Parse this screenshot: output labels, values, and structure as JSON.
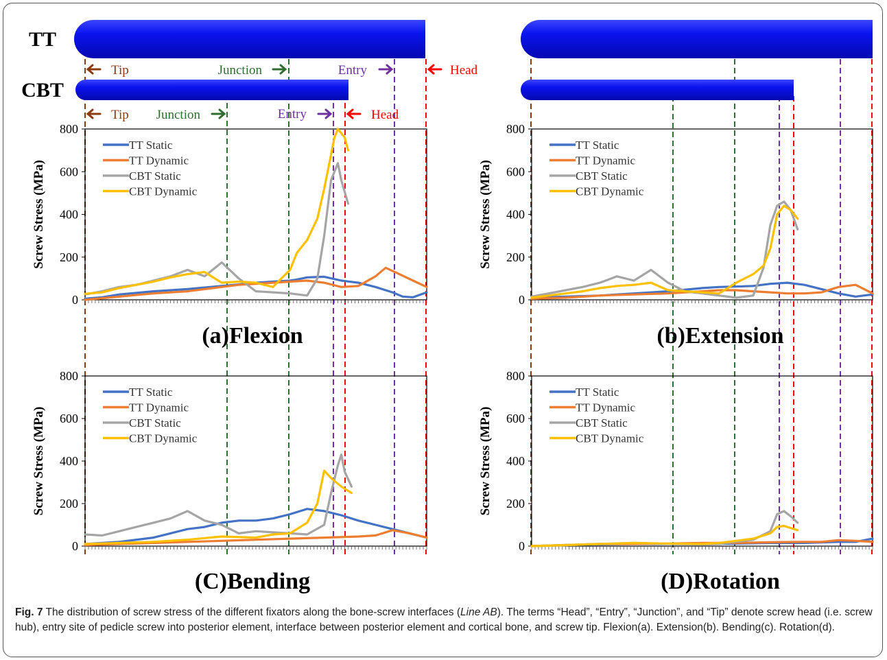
{
  "caption": {
    "label": "Fig. 7",
    "pre": " The distribution of screw stress of the different fixators along the bone-screw interfaces (",
    "italic": "Line AB",
    "post": "). The terms “Head”, “Entry”, “Junction”, and “Tip” denote screw head (i.e. screw hub), entry site of pedicle screw into posterior element, interface between posterior element and cortical bone, and screw tip. Flexion(a). Extension(b). Bending(c). Rotation(d)."
  },
  "screws": {
    "tt_label": "TT",
    "cbt_label": "CBT",
    "tt_markers": {
      "tip": "Tip",
      "junction": "Junction",
      "entry": "Entry",
      "head": "Head"
    },
    "cbt_markers": {
      "tip": "Tip",
      "junction": "Junction",
      "entry": "Entry",
      "head": "Head"
    }
  },
  "colors": {
    "screw": "#0a14ee",
    "tip": "#8b3a0e",
    "junction": "#2e6e2e",
    "entry": "#7030a0",
    "head": "#ff0000",
    "tt_static": "#4472c4",
    "tt_dynamic": "#ed7d31",
    "cbt_static": "#a5a5a5",
    "cbt_dynamic": "#ffc000"
  },
  "chart_data": [
    {
      "type": "line",
      "title": "(a)Flexion",
      "ylabel": "Screw Stress (MPa)",
      "ylim": [
        0,
        800
      ],
      "yticks": [
        "0",
        "200",
        "400",
        "600",
        "800"
      ],
      "x_range": [
        0,
        100
      ],
      "legend_position": "top-left",
      "series": [
        {
          "name": "TT Static",
          "color": "#4472c4",
          "x": [
            0,
            5,
            10,
            20,
            30,
            40,
            45,
            50,
            55,
            60,
            62,
            65,
            70,
            75,
            80,
            85,
            90,
            93,
            96,
            100
          ],
          "y": [
            5,
            12,
            25,
            40,
            50,
            65,
            72,
            80,
            85,
            90,
            95,
            105,
            108,
            90,
            80,
            60,
            35,
            15,
            12,
            35
          ]
        },
        {
          "name": "TT Dynamic",
          "color": "#ed7d31",
          "x": [
            0,
            10,
            20,
            30,
            40,
            45,
            50,
            55,
            60,
            65,
            70,
            75,
            80,
            85,
            88,
            92,
            96,
            100
          ],
          "y": [
            0,
            15,
            30,
            40,
            60,
            70,
            75,
            80,
            85,
            90,
            80,
            60,
            65,
            110,
            150,
            120,
            90,
            60
          ]
        },
        {
          "name": "CBT Static",
          "color": "#a5a5a5",
          "x": [
            0,
            5,
            10,
            15,
            20,
            25,
            30,
            35,
            40,
            45,
            50,
            55,
            60,
            65,
            68,
            70,
            72,
            74,
            75,
            77
          ],
          "y": [
            25,
            40,
            60,
            70,
            90,
            110,
            140,
            110,
            175,
            100,
            40,
            35,
            30,
            20,
            100,
            300,
            560,
            640,
            560,
            450
          ]
        },
        {
          "name": "CBT Dynamic",
          "color": "#ffc000",
          "x": [
            0,
            5,
            10,
            15,
            20,
            25,
            30,
            35,
            40,
            45,
            50,
            55,
            60,
            62,
            65,
            68,
            70,
            72,
            73,
            74,
            76,
            77
          ],
          "y": [
            28,
            35,
            55,
            70,
            85,
            105,
            120,
            130,
            80,
            85,
            80,
            60,
            140,
            220,
            280,
            380,
            520,
            680,
            760,
            800,
            760,
            700
          ]
        }
      ]
    },
    {
      "type": "line",
      "title": "(b)Extension",
      "ylabel": "Screw Stress (MPa)",
      "ylim": [
        0,
        800
      ],
      "yticks": [
        "0",
        "200",
        "400",
        "600",
        "800"
      ],
      "x_range": [
        0,
        100
      ],
      "legend_position": "top-left",
      "series": [
        {
          "name": "TT Static",
          "color": "#4472c4",
          "x": [
            0,
            10,
            20,
            30,
            40,
            50,
            55,
            60,
            65,
            70,
            75,
            80,
            85,
            90,
            95,
            100
          ],
          "y": [
            10,
            15,
            20,
            30,
            40,
            55,
            60,
            62,
            65,
            75,
            80,
            70,
            50,
            30,
            15,
            25
          ]
        },
        {
          "name": "TT Dynamic",
          "color": "#ed7d31",
          "x": [
            0,
            10,
            20,
            30,
            40,
            50,
            55,
            60,
            65,
            70,
            75,
            80,
            85,
            90,
            95,
            100
          ],
          "y": [
            5,
            10,
            20,
            25,
            30,
            40,
            45,
            45,
            40,
            35,
            30,
            30,
            35,
            60,
            70,
            30
          ]
        },
        {
          "name": "CBT Static",
          "color": "#a5a5a5",
          "x": [
            0,
            5,
            10,
            15,
            20,
            25,
            30,
            35,
            40,
            45,
            50,
            55,
            60,
            65,
            68,
            70,
            72,
            74,
            76,
            78
          ],
          "y": [
            15,
            30,
            45,
            60,
            80,
            110,
            90,
            140,
            80,
            40,
            30,
            20,
            10,
            20,
            150,
            350,
            440,
            460,
            420,
            330
          ]
        },
        {
          "name": "CBT Dynamic",
          "color": "#ffc000",
          "x": [
            0,
            5,
            10,
            15,
            20,
            25,
            30,
            35,
            40,
            45,
            50,
            55,
            60,
            65,
            68,
            70,
            72,
            74,
            76,
            78
          ],
          "y": [
            10,
            20,
            30,
            40,
            55,
            65,
            70,
            80,
            45,
            40,
            35,
            30,
            80,
            120,
            160,
            240,
            400,
            440,
            420,
            380
          ]
        }
      ]
    },
    {
      "type": "line",
      "title": "(C)Bending",
      "ylabel": "Screw Stress (MPa)",
      "ylim": [
        0,
        800
      ],
      "yticks": [
        "0",
        "200",
        "400",
        "600",
        "800"
      ],
      "x_range": [
        0,
        100
      ],
      "legend_position": "top-left",
      "series": [
        {
          "name": "TT Static",
          "color": "#4472c4",
          "x": [
            0,
            10,
            20,
            25,
            30,
            35,
            40,
            45,
            50,
            55,
            60,
            65,
            70,
            75,
            80,
            85,
            90,
            95,
            100
          ],
          "y": [
            10,
            20,
            40,
            60,
            80,
            90,
            110,
            120,
            120,
            130,
            150,
            175,
            165,
            145,
            120,
            100,
            80,
            60,
            40
          ]
        },
        {
          "name": "TT Dynamic",
          "color": "#ed7d31",
          "x": [
            0,
            10,
            20,
            30,
            40,
            50,
            60,
            70,
            80,
            85,
            90,
            95,
            100
          ],
          "y": [
            5,
            10,
            15,
            20,
            25,
            30,
            35,
            40,
            45,
            50,
            75,
            60,
            40
          ]
        },
        {
          "name": "CBT Static",
          "color": "#a5a5a5",
          "x": [
            0,
            5,
            10,
            15,
            20,
            25,
            30,
            35,
            40,
            45,
            50,
            55,
            60,
            65,
            70,
            72,
            74,
            75,
            76,
            78
          ],
          "y": [
            55,
            50,
            70,
            90,
            110,
            130,
            165,
            120,
            100,
            60,
            70,
            65,
            60,
            55,
            100,
            250,
            380,
            430,
            350,
            280
          ]
        },
        {
          "name": "CBT Dynamic",
          "color": "#ffc000",
          "x": [
            0,
            10,
            20,
            30,
            40,
            50,
            55,
            60,
            65,
            68,
            70,
            72,
            75,
            78
          ],
          "y": [
            10,
            15,
            20,
            30,
            45,
            40,
            55,
            60,
            110,
            200,
            355,
            320,
            280,
            250
          ]
        }
      ]
    },
    {
      "type": "line",
      "title": "(D)Rotation",
      "ylabel": "Screw Stress (MPa)",
      "ylim": [
        0,
        800
      ],
      "yticks": [
        "0",
        "200",
        "400",
        "600",
        "800"
      ],
      "x_range": [
        0,
        100
      ],
      "legend_position": "top-left",
      "series": [
        {
          "name": "TT Static",
          "color": "#4472c4",
          "x": [
            0,
            10,
            20,
            30,
            40,
            50,
            60,
            70,
            80,
            90,
            95,
            100
          ],
          "y": [
            0,
            5,
            8,
            10,
            10,
            10,
            12,
            15,
            15,
            20,
            20,
            35
          ]
        },
        {
          "name": "TT Dynamic",
          "color": "#ed7d31",
          "x": [
            0,
            10,
            20,
            30,
            40,
            50,
            60,
            70,
            80,
            85,
            90,
            95,
            100
          ],
          "y": [
            0,
            5,
            10,
            10,
            12,
            15,
            15,
            18,
            20,
            20,
            28,
            25,
            20
          ]
        },
        {
          "name": "CBT Static",
          "color": "#a5a5a5",
          "x": [
            0,
            10,
            20,
            30,
            40,
            50,
            55,
            60,
            65,
            70,
            72,
            74,
            76,
            78
          ],
          "y": [
            0,
            5,
            10,
            15,
            10,
            8,
            10,
            20,
            30,
            70,
            150,
            165,
            140,
            110
          ]
        },
        {
          "name": "CBT Dynamic",
          "color": "#ffc000",
          "x": [
            0,
            10,
            20,
            30,
            40,
            50,
            55,
            60,
            65,
            70,
            72,
            74,
            76,
            78
          ],
          "y": [
            0,
            5,
            10,
            15,
            12,
            10,
            15,
            25,
            35,
            60,
            90,
            95,
            85,
            75
          ]
        }
      ]
    }
  ]
}
